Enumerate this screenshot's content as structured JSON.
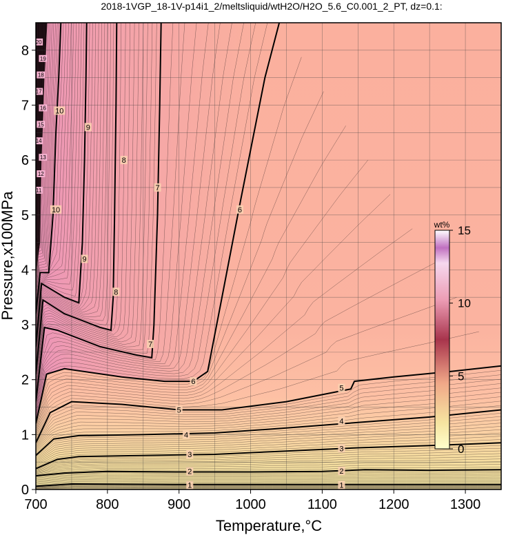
{
  "chart_data": {
    "type": "contour",
    "title": "2018-1VGP_18-1V-p14i1_2/meltsliquid/wtH2O/H2O_5.6_C0.001_2_PT, dz=0.1:",
    "xlabel": "Temperature,°C",
    "ylabel": "Pressure,x100MPa",
    "xlim": [
      700,
      1350
    ],
    "ylim": [
      0,
      8.5
    ],
    "x_ticks": [
      700,
      800,
      900,
      1000,
      1100,
      1200,
      1300
    ],
    "y_ticks": [
      0,
      1,
      2,
      3,
      4,
      5,
      6,
      7,
      8
    ],
    "grid": true,
    "colorbar": {
      "label": "wt%",
      "ticks": [
        0,
        5,
        10,
        15
      ],
      "range": [
        0,
        15
      ]
    },
    "contour_interval": 0.1,
    "labeled_contours": [
      {
        "level": 1,
        "label": "1",
        "points": [
          [
            700,
            0.06
          ],
          [
            750,
            0.1
          ],
          [
            900,
            0.09
          ],
          [
            1000,
            0.09
          ],
          [
            1100,
            0.09
          ],
          [
            1160,
            0.09
          ],
          [
            1200,
            0.09
          ],
          [
            1350,
            0.09
          ]
        ],
        "label_at": [
          [
            915,
            0.08
          ],
          [
            1127,
            0.08
          ]
        ]
      },
      {
        "level": 2,
        "label": "2",
        "points": [
          [
            700,
            0.25
          ],
          [
            740,
            0.3
          ],
          [
            800,
            0.33
          ],
          [
            900,
            0.32
          ],
          [
            1000,
            0.32
          ],
          [
            1100,
            0.33
          ],
          [
            1160,
            0.36
          ],
          [
            1250,
            0.35
          ],
          [
            1350,
            0.36
          ]
        ],
        "label_at": [
          [
            915,
            0.33
          ],
          [
            1127,
            0.34
          ]
        ]
      },
      {
        "level": 3,
        "label": "3",
        "points": [
          [
            700,
            0.38
          ],
          [
            730,
            0.55
          ],
          [
            760,
            0.6
          ],
          [
            850,
            0.62
          ],
          [
            950,
            0.64
          ],
          [
            1050,
            0.7
          ],
          [
            1150,
            0.76
          ],
          [
            1250,
            0.8
          ],
          [
            1350,
            0.85
          ]
        ],
        "label_at": [
          [
            915,
            0.64
          ],
          [
            1127,
            0.75
          ]
        ]
      },
      {
        "level": 4,
        "label": "4",
        "points": [
          [
            700,
            0.62
          ],
          [
            725,
            0.92
          ],
          [
            760,
            0.98
          ],
          [
            850,
            1.0
          ],
          [
            950,
            1.03
          ],
          [
            1050,
            1.12
          ],
          [
            1150,
            1.22
          ],
          [
            1250,
            1.32
          ],
          [
            1350,
            1.45
          ]
        ],
        "label_at": [
          [
            910,
            1.0
          ],
          [
            1127,
            1.25
          ]
        ]
      },
      {
        "level": 5,
        "label": "5",
        "points": [
          [
            700,
            0.85
          ],
          [
            720,
            1.4
          ],
          [
            750,
            1.6
          ],
          [
            820,
            1.55
          ],
          [
            900,
            1.45
          ],
          [
            960,
            1.45
          ],
          [
            1050,
            1.6
          ],
          [
            1140,
            1.83
          ],
          [
            1145,
            1.97
          ],
          [
            1200,
            2.05
          ],
          [
            1280,
            2.15
          ],
          [
            1350,
            2.25
          ]
        ],
        "label_at": [
          [
            900,
            1.45
          ],
          [
            1127,
            1.85
          ]
        ]
      },
      {
        "level": 6,
        "label": "6",
        "points": [
          [
            700,
            1.2
          ],
          [
            715,
            2.1
          ],
          [
            740,
            2.2
          ],
          [
            820,
            2.05
          ],
          [
            880,
            1.97
          ],
          [
            920,
            1.97
          ],
          [
            940,
            2.15
          ],
          [
            960,
            3.5
          ],
          [
            985,
            5.2
          ],
          [
            1020,
            7.5
          ],
          [
            1040,
            8.5
          ]
        ],
        "label_at": [
          [
            920,
            1.97
          ],
          [
            985,
            5.1
          ]
        ]
      },
      {
        "level": 7,
        "label": "7",
        "points": [
          [
            700,
            1.6
          ],
          [
            712,
            2.95
          ],
          [
            730,
            2.9
          ],
          [
            790,
            2.6
          ],
          [
            840,
            2.45
          ],
          [
            862,
            2.4
          ],
          [
            865,
            3.0
          ],
          [
            870,
            5.0
          ],
          [
            873,
            7.0
          ],
          [
            875,
            8.5
          ]
        ],
        "label_at": [
          [
            860,
            2.65
          ],
          [
            870,
            5.5
          ]
        ]
      },
      {
        "level": 8,
        "label": "8",
        "points": [
          [
            700,
            2.1
          ],
          [
            710,
            3.45
          ],
          [
            740,
            3.2
          ],
          [
            790,
            2.95
          ],
          [
            805,
            2.9
          ],
          [
            808,
            3.5
          ],
          [
            810,
            5.0
          ],
          [
            812,
            7.0
          ],
          [
            813,
            8.5
          ]
        ],
        "label_at": [
          [
            812,
            3.6
          ],
          [
            823,
            6.0
          ]
        ]
      },
      {
        "level": 9,
        "label": "9",
        "points": [
          [
            700,
            2.6
          ],
          [
            708,
            3.75
          ],
          [
            740,
            3.5
          ],
          [
            760,
            3.4
          ],
          [
            765,
            4.5
          ],
          [
            768,
            6.0
          ],
          [
            770,
            7.5
          ],
          [
            771,
            8.5
          ]
        ],
        "label_at": [
          [
            768,
            4.2
          ],
          [
            773,
            6.6
          ]
        ]
      },
      {
        "level": 10,
        "label": "10",
        "points": [
          [
            700,
            3.2
          ],
          [
            706,
            3.95
          ],
          [
            718,
            3.95
          ],
          [
            724,
            5.0
          ],
          [
            728,
            6.5
          ],
          [
            732,
            7.5
          ],
          [
            735,
            8.5
          ]
        ],
        "label_at": [
          [
            728,
            5.1
          ],
          [
            733,
            6.9
          ]
        ]
      }
    ],
    "upper_left_labels": [
      "11",
      "12",
      "13",
      "14",
      "15",
      "16",
      "17",
      "18",
      "19",
      "20"
    ],
    "colors": {
      "high_pink": "#f2a0b0",
      "mid_salmon": "#f8b5a0",
      "low_peach": "#ffc8a8",
      "base_yellow": "#f0e4a0"
    }
  }
}
